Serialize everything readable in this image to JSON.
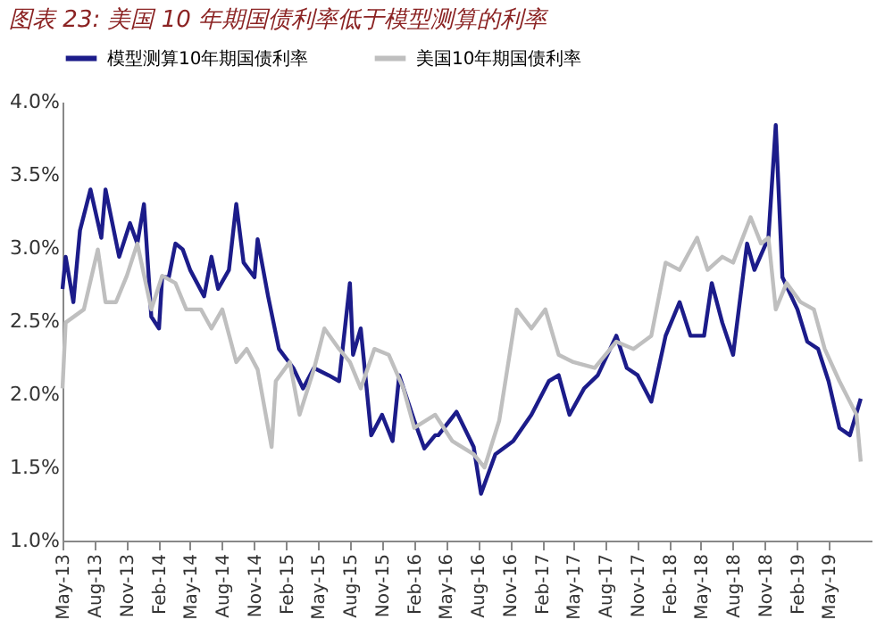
{
  "chart_data": {
    "type": "line",
    "title": "图表 23: 美国 10 年期国债利率低于模型测算的利率",
    "legend": "top",
    "grid": false,
    "line_style": "solid",
    "ylim": [
      1.0,
      4.0
    ],
    "yticks": [
      {
        "value": 1.0,
        "label": "1.0%"
      },
      {
        "value": 1.5,
        "label": "1.5%"
      },
      {
        "value": 2.0,
        "label": "2.0%"
      },
      {
        "value": 2.5,
        "label": "2.5%"
      },
      {
        "value": 3.0,
        "label": "3.0%"
      },
      {
        "value": 3.5,
        "label": "3.5%"
      },
      {
        "value": 4.0,
        "label": "4.0%"
      }
    ],
    "xlim": [
      "2013-05-01",
      "2019-09-01"
    ],
    "xticks": [
      {
        "value": "2013-05-01",
        "label": "May-13"
      },
      {
        "value": "2013-08-01",
        "label": "Aug-13"
      },
      {
        "value": "2013-11-01",
        "label": "Nov-13"
      },
      {
        "value": "2014-02-01",
        "label": "Feb-14"
      },
      {
        "value": "2014-05-01",
        "label": "May-14"
      },
      {
        "value": "2014-08-01",
        "label": "Aug-14"
      },
      {
        "value": "2014-11-01",
        "label": "Nov-14"
      },
      {
        "value": "2015-02-01",
        "label": "Feb-15"
      },
      {
        "value": "2015-05-01",
        "label": "May-15"
      },
      {
        "value": "2015-08-01",
        "label": "Aug-15"
      },
      {
        "value": "2015-11-01",
        "label": "Nov-15"
      },
      {
        "value": "2016-02-01",
        "label": "Feb-16"
      },
      {
        "value": "2016-05-01",
        "label": "May-16"
      },
      {
        "value": "2016-08-01",
        "label": "Aug-16"
      },
      {
        "value": "2016-11-01",
        "label": "Nov-16"
      },
      {
        "value": "2017-02-01",
        "label": "Feb-17"
      },
      {
        "value": "2017-05-01",
        "label": "May-17"
      },
      {
        "value": "2017-08-01",
        "label": "Aug-17"
      },
      {
        "value": "2017-11-01",
        "label": "Nov-17"
      },
      {
        "value": "2018-02-01",
        "label": "Feb-18"
      },
      {
        "value": "2018-05-01",
        "label": "May-18"
      },
      {
        "value": "2018-08-01",
        "label": "Aug-18"
      },
      {
        "value": "2018-11-01",
        "label": "Nov-18"
      },
      {
        "value": "2019-02-01",
        "label": "Feb-19"
      },
      {
        "value": "2019-05-01",
        "label": "May-19"
      }
    ],
    "series": [
      {
        "name": "模型测算10年期国债利率",
        "color": "#1c1c8a",
        "x": [
          "2013-05-01",
          "2013-05-10",
          "2013-06-01",
          "2013-06-20",
          "2013-07-20",
          "2013-08-20",
          "2013-09-01",
          "2013-10-10",
          "2013-11-10",
          "2013-12-01",
          "2013-12-20",
          "2014-01-10",
          "2014-02-01",
          "2014-02-10",
          "2014-03-01",
          "2014-03-20",
          "2014-04-10",
          "2014-05-01",
          "2014-06-10",
          "2014-07-01",
          "2014-07-20",
          "2014-08-20",
          "2014-09-10",
          "2014-10-01",
          "2014-11-01",
          "2014-11-10",
          "2014-12-10",
          "2015-01-10",
          "2015-02-20",
          "2015-03-20",
          "2015-04-20",
          "2015-06-01",
          "2015-07-01",
          "2015-08-01",
          "2015-08-10",
          "2015-09-01",
          "2015-10-01",
          "2015-11-01",
          "2015-12-01",
          "2015-12-20",
          "2016-02-01",
          "2016-03-01",
          "2016-04-01",
          "2016-04-10",
          "2016-06-01",
          "2016-07-20",
          "2016-08-10",
          "2016-09-20",
          "2016-11-10",
          "2017-01-01",
          "2017-02-20",
          "2017-03-20",
          "2017-04-20",
          "2017-06-01",
          "2017-07-10",
          "2017-09-01",
          "2017-10-01",
          "2017-11-01",
          "2017-12-10",
          "2018-01-20",
          "2018-03-01",
          "2018-04-01",
          "2018-05-10",
          "2018-06-01",
          "2018-07-01",
          "2018-08-01",
          "2018-09-10",
          "2018-10-01",
          "2018-11-10",
          "2018-12-01",
          "2018-12-20",
          "2019-02-01",
          "2019-03-01",
          "2019-04-01",
          "2019-05-01",
          "2019-06-01",
          "2019-07-01",
          "2019-08-01"
        ],
        "values": [
          2.72,
          2.94,
          2.63,
          3.12,
          3.4,
          3.07,
          3.4,
          2.94,
          3.17,
          3.03,
          3.3,
          2.53,
          2.45,
          2.8,
          2.8,
          3.03,
          2.99,
          2.85,
          2.67,
          2.94,
          2.72,
          2.85,
          3.3,
          2.9,
          2.8,
          3.06,
          2.67,
          2.31,
          2.18,
          2.04,
          2.18,
          2.13,
          2.09,
          2.76,
          2.27,
          2.45,
          1.72,
          1.86,
          1.68,
          2.13,
          1.82,
          1.63,
          1.72,
          1.72,
          1.88,
          1.64,
          1.32,
          1.59,
          1.68,
          1.86,
          2.09,
          2.13,
          1.86,
          2.04,
          2.13,
          2.4,
          2.18,
          2.13,
          1.95,
          2.4,
          2.63,
          2.4,
          2.4,
          2.76,
          2.49,
          2.27,
          3.03,
          2.85,
          3.07,
          3.84,
          2.8,
          2.58,
          2.36,
          2.31,
          2.09,
          1.77,
          1.72,
          1.97
        ]
      },
      {
        "name": "美国10年期国债利率",
        "color": "#bfbfbf",
        "x": [
          "2013-05-01",
          "2013-05-10",
          "2013-07-01",
          "2013-08-10",
          "2013-09-01",
          "2013-10-01",
          "2013-11-01",
          "2013-12-01",
          "2014-01-10",
          "2014-02-10",
          "2014-03-20",
          "2014-04-20",
          "2014-06-01",
          "2014-07-01",
          "2014-08-01",
          "2014-09-10",
          "2014-10-10",
          "2014-11-10",
          "2014-12-20",
          "2015-01-01",
          "2015-02-10",
          "2015-03-10",
          "2015-04-20",
          "2015-05-20",
          "2015-07-01",
          "2015-08-01",
          "2015-09-01",
          "2015-10-10",
          "2015-11-20",
          "2016-01-01",
          "2016-02-01",
          "2016-04-01",
          "2016-05-20",
          "2016-07-20",
          "2016-08-20",
          "2016-10-01",
          "2016-11-20",
          "2017-01-01",
          "2017-02-10",
          "2017-03-20",
          "2017-05-01",
          "2017-07-01",
          "2017-09-01",
          "2017-10-20",
          "2017-12-10",
          "2018-01-20",
          "2018-03-01",
          "2018-04-20",
          "2018-05-20",
          "2018-07-01",
          "2018-08-01",
          "2018-09-20",
          "2018-10-20",
          "2018-11-10",
          "2018-12-01",
          "2019-01-01",
          "2019-02-10",
          "2019-03-20",
          "2019-04-20",
          "2019-06-01",
          "2019-07-20",
          "2019-08-01"
        ],
        "values": [
          2.04,
          2.49,
          2.58,
          2.99,
          2.63,
          2.63,
          2.81,
          3.03,
          2.58,
          2.81,
          2.76,
          2.58,
          2.58,
          2.45,
          2.58,
          2.22,
          2.31,
          2.17,
          1.64,
          2.09,
          2.22,
          1.86,
          2.17,
          2.45,
          2.31,
          2.22,
          2.04,
          2.31,
          2.27,
          2.04,
          1.77,
          1.86,
          1.68,
          1.59,
          1.5,
          1.82,
          2.58,
          2.45,
          2.58,
          2.27,
          2.22,
          2.18,
          2.36,
          2.31,
          2.4,
          2.9,
          2.85,
          3.07,
          2.85,
          2.94,
          2.9,
          3.21,
          3.03,
          3.07,
          2.58,
          2.76,
          2.63,
          2.58,
          2.31,
          2.09,
          1.86,
          1.54
        ]
      }
    ]
  }
}
